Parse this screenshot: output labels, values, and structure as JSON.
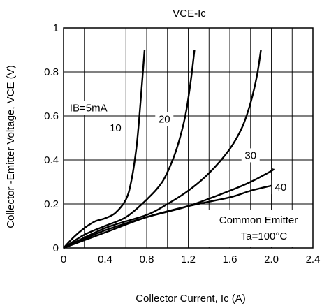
{
  "chart_data": {
    "type": "line",
    "title": "VCE-Ic",
    "xlabel": "Collector Current, Ic (A)",
    "ylabel": "Collector -Emitter Voltage, VCE (V)",
    "xlim": [
      0,
      2.4
    ],
    "ylim": [
      0,
      1
    ],
    "x_ticks": [
      "0",
      "0.4",
      "0.8",
      "1.2",
      "1.6",
      "2.0",
      "2.4"
    ],
    "y_ticks": [
      "0",
      "0.2",
      "0.4",
      "0.6",
      "0.8",
      "1"
    ],
    "grid": true,
    "legend": "none",
    "annotations": [
      "Common Emitter",
      "Ta=100°C"
    ],
    "series": [
      {
        "name": "IB=5mA",
        "points": [
          [
            0,
            0
          ],
          [
            0.1,
            0.05
          ],
          [
            0.2,
            0.09
          ],
          [
            0.3,
            0.12
          ],
          [
            0.4,
            0.135
          ],
          [
            0.5,
            0.16
          ],
          [
            0.6,
            0.22
          ],
          [
            0.65,
            0.3
          ],
          [
            0.7,
            0.45
          ],
          [
            0.73,
            0.6
          ],
          [
            0.76,
            0.78
          ],
          [
            0.78,
            0.9
          ]
        ]
      },
      {
        "name": "10",
        "points": [
          [
            0,
            0
          ],
          [
            0.2,
            0.06
          ],
          [
            0.4,
            0.1
          ],
          [
            0.6,
            0.14
          ],
          [
            0.8,
            0.22
          ],
          [
            0.95,
            0.3
          ],
          [
            1.05,
            0.4
          ],
          [
            1.12,
            0.5
          ],
          [
            1.18,
            0.62
          ],
          [
            1.23,
            0.78
          ],
          [
            1.26,
            0.9
          ]
        ]
      },
      {
        "name": "20",
        "points": [
          [
            0,
            0
          ],
          [
            0.4,
            0.09
          ],
          [
            0.8,
            0.15
          ],
          [
            1.0,
            0.2
          ],
          [
            1.2,
            0.26
          ],
          [
            1.4,
            0.34
          ],
          [
            1.6,
            0.45
          ],
          [
            1.72,
            0.55
          ],
          [
            1.8,
            0.66
          ],
          [
            1.86,
            0.78
          ],
          [
            1.9,
            0.9
          ]
        ]
      },
      {
        "name": "30",
        "points": [
          [
            0,
            0
          ],
          [
            0.4,
            0.08
          ],
          [
            0.8,
            0.14
          ],
          [
            1.2,
            0.19
          ],
          [
            1.6,
            0.26
          ],
          [
            1.8,
            0.3
          ],
          [
            2.0,
            0.35
          ],
          [
            2.02,
            0.36
          ]
        ]
      },
      {
        "name": "40",
        "points": [
          [
            0,
            0
          ],
          [
            0.4,
            0.07
          ],
          [
            0.8,
            0.14
          ],
          [
            1.2,
            0.19
          ],
          [
            1.6,
            0.23
          ],
          [
            1.8,
            0.26
          ],
          [
            2.02,
            0.285
          ]
        ]
      }
    ]
  }
}
